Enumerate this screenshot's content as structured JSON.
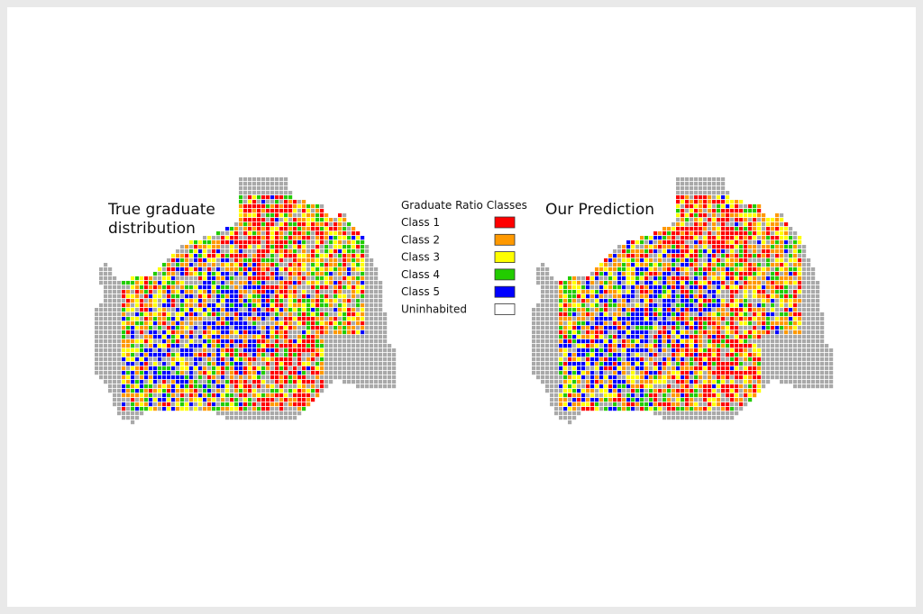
{
  "left_map": {
    "title_lines": [
      "True graduate",
      "distribution"
    ]
  },
  "right_map": {
    "title_lines": [
      "Our Prediction"
    ]
  },
  "legend": {
    "title": "Graduate Ratio Classes",
    "items": [
      {
        "label": "Class 1",
        "color": "#ff0000"
      },
      {
        "label": "Class 2",
        "color": "#ff9900"
      },
      {
        "label": "Class 3",
        "color": "#ffff00"
      },
      {
        "label": "Class 4",
        "color": "#22cc00"
      },
      {
        "label": "Class 5",
        "color": "#0000ff"
      },
      {
        "label": "Uninhabited",
        "color": "#ffffff"
      }
    ]
  }
}
